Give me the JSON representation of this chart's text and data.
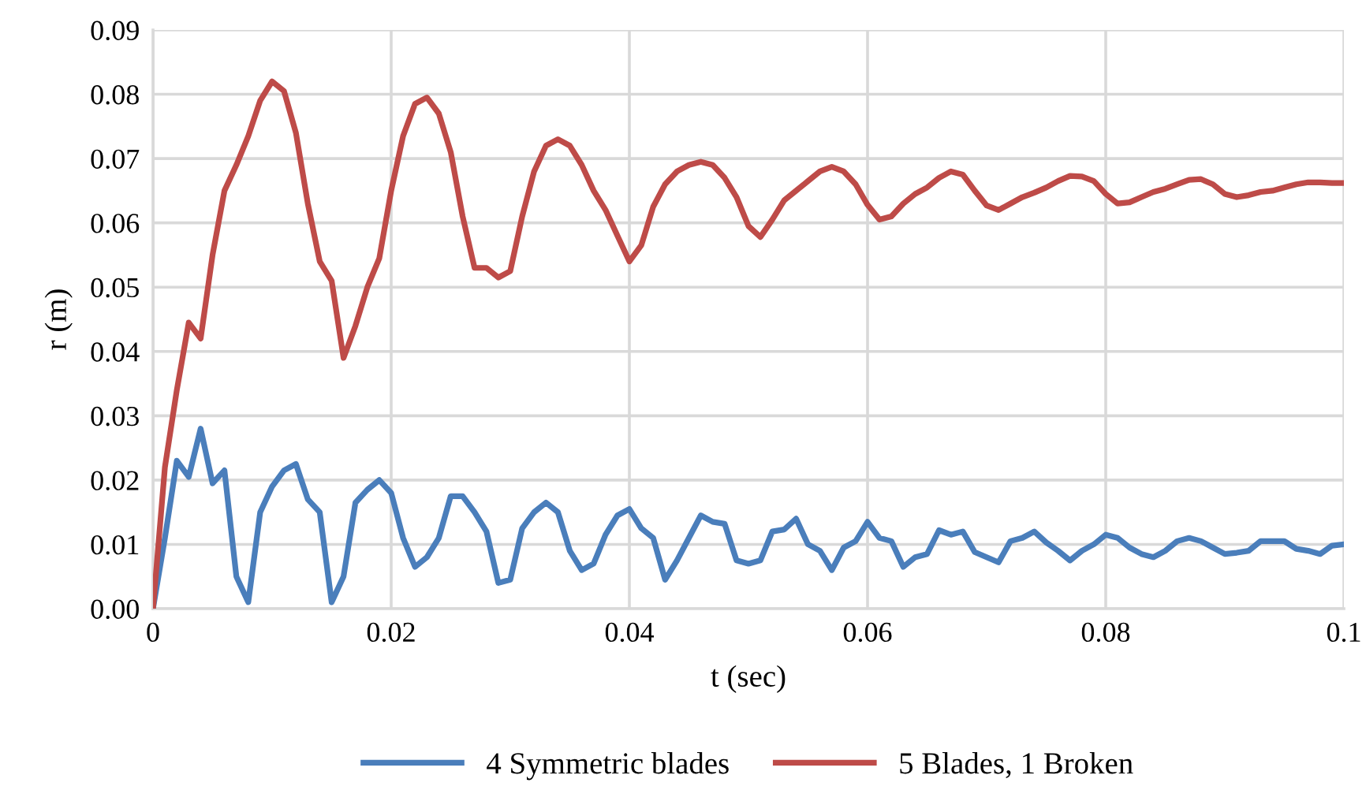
{
  "chart_data": {
    "type": "line",
    "xlabel": "t (sec)",
    "ylabel": "r (m)",
    "x": [
      0,
      0.001,
      0.002,
      0.003,
      0.004,
      0.005,
      0.006,
      0.007,
      0.008,
      0.009,
      0.01,
      0.011,
      0.012,
      0.013,
      0.014,
      0.015,
      0.016,
      0.017,
      0.018,
      0.019,
      0.02,
      0.021,
      0.022,
      0.023,
      0.024,
      0.025,
      0.026,
      0.027,
      0.028,
      0.029,
      0.03,
      0.031,
      0.032,
      0.033,
      0.034,
      0.035,
      0.036,
      0.037,
      0.038,
      0.039,
      0.04,
      0.041,
      0.042,
      0.043,
      0.044,
      0.045,
      0.046,
      0.047,
      0.048,
      0.049,
      0.05,
      0.051,
      0.052,
      0.053,
      0.054,
      0.055,
      0.056,
      0.057,
      0.058,
      0.059,
      0.06,
      0.061,
      0.062,
      0.063,
      0.064,
      0.065,
      0.066,
      0.067,
      0.068,
      0.069,
      0.07,
      0.071,
      0.072,
      0.073,
      0.074,
      0.075,
      0.076,
      0.077,
      0.078,
      0.079,
      0.08,
      0.081,
      0.082,
      0.083,
      0.084,
      0.085,
      0.086,
      0.087,
      0.088,
      0.089,
      0.09,
      0.091,
      0.092,
      0.093,
      0.094,
      0.095,
      0.096,
      0.097,
      0.098,
      0.099,
      0.1
    ],
    "series": [
      {
        "name": "4 Symmetric blades",
        "color": "#4a7ebb",
        "values": [
          0,
          0.011,
          0.023,
          0.0205,
          0.028,
          0.0195,
          0.0215,
          0.005,
          0.001,
          0.015,
          0.019,
          0.0215,
          0.0225,
          0.017,
          0.015,
          0.001,
          0.005,
          0.0165,
          0.0185,
          0.02,
          0.018,
          0.011,
          0.0065,
          0.008,
          0.011,
          0.0175,
          0.0175,
          0.015,
          0.012,
          0.004,
          0.0045,
          0.0125,
          0.015,
          0.0165,
          0.015,
          0.009,
          0.006,
          0.007,
          0.0115,
          0.0145,
          0.0155,
          0.0125,
          0.011,
          0.0045,
          0.0075,
          0.011,
          0.0145,
          0.0135,
          0.0132,
          0.0075,
          0.007,
          0.0075,
          0.012,
          0.0123,
          0.014,
          0.01,
          0.009,
          0.006,
          0.0095,
          0.0105,
          0.0135,
          0.011,
          0.0105,
          0.0065,
          0.008,
          0.0085,
          0.0122,
          0.0115,
          0.012,
          0.0088,
          0.008,
          0.0072,
          0.0105,
          0.011,
          0.012,
          0.0103,
          0.009,
          0.0075,
          0.009,
          0.01,
          0.0115,
          0.011,
          0.0095,
          0.0085,
          0.008,
          0.009,
          0.0105,
          0.011,
          0.0105,
          0.0095,
          0.0085,
          0.0087,
          0.009,
          0.0105,
          0.0105,
          0.0105,
          0.0093,
          0.009,
          0.0085,
          0.0098,
          0.01
        ]
      },
      {
        "name": "5 Blades, 1 Broken",
        "color": "#be4b48",
        "values": [
          0,
          0.022,
          0.034,
          0.0445,
          0.042,
          0.055,
          0.065,
          0.069,
          0.0735,
          0.079,
          0.082,
          0.0805,
          0.074,
          0.063,
          0.054,
          0.051,
          0.039,
          0.044,
          0.05,
          0.0545,
          0.065,
          0.0735,
          0.0785,
          0.0795,
          0.077,
          0.071,
          0.061,
          0.053,
          0.053,
          0.0515,
          0.0525,
          0.061,
          0.068,
          0.072,
          0.073,
          0.072,
          0.069,
          0.065,
          0.062,
          0.058,
          0.054,
          0.0565,
          0.0625,
          0.066,
          0.068,
          0.069,
          0.0695,
          0.069,
          0.067,
          0.064,
          0.0595,
          0.0578,
          0.0605,
          0.0635,
          0.065,
          0.0665,
          0.068,
          0.0687,
          0.068,
          0.066,
          0.0628,
          0.0605,
          0.061,
          0.063,
          0.0645,
          0.0655,
          0.067,
          0.068,
          0.0675,
          0.065,
          0.0627,
          0.062,
          0.063,
          0.064,
          0.0647,
          0.0655,
          0.0665,
          0.0673,
          0.0672,
          0.0665,
          0.0645,
          0.063,
          0.0632,
          0.064,
          0.0648,
          0.0653,
          0.066,
          0.0667,
          0.0668,
          0.066,
          0.0645,
          0.064,
          0.0643,
          0.0648,
          0.065,
          0.0655,
          0.066,
          0.0663,
          0.0663,
          0.0662,
          0.0662
        ]
      }
    ],
    "xlim": [
      0,
      0.1
    ],
    "xticks": [
      0,
      0.02,
      0.04,
      0.06,
      0.08,
      0.1
    ],
    "ylim": [
      0,
      0.09
    ],
    "yticks": [
      {
        "value": 0,
        "label": "0.00"
      },
      {
        "value": 0.01,
        "label": "0.01"
      },
      {
        "value": 0.02,
        "label": "0.02"
      },
      {
        "value": 0.03,
        "label": "0.03"
      },
      {
        "value": 0.04,
        "label": "0.04"
      },
      {
        "value": 0.05,
        "label": "0.05"
      },
      {
        "value": 0.06,
        "label": "0.06"
      },
      {
        "value": 0.07,
        "label": "0.07"
      },
      {
        "value": 0.08,
        "label": "0.08"
      },
      {
        "value": 0.09,
        "label": "0.09"
      }
    ],
    "grid": true,
    "legend": "bottom",
    "marker": "none",
    "line_style": "solid"
  }
}
